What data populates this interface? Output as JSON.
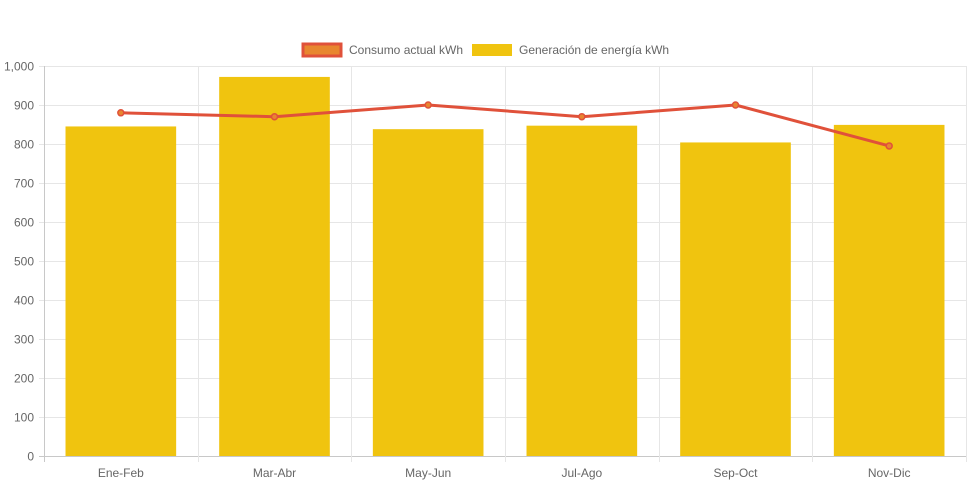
{
  "chart_data": {
    "type": "bar",
    "categories": [
      "Ene-Feb",
      "Mar-Abr",
      "May-Jun",
      "Jul-Ago",
      "Sep-Oct",
      "Nov-Dic"
    ],
    "series": [
      {
        "name": "Consumo actual kWh",
        "kind": "line",
        "values": [
          880,
          870,
          900,
          870,
          900,
          795
        ],
        "color": "#e0513a",
        "legend_fill": "#e8862f"
      },
      {
        "name": "Generación de energía kWh",
        "kind": "bar",
        "values": [
          845,
          972,
          838,
          847,
          804,
          849
        ],
        "color": "#f0c40f"
      }
    ],
    "yticks": [
      "0",
      "100",
      "200",
      "300",
      "400",
      "500",
      "600",
      "700",
      "800",
      "900",
      "1,000"
    ],
    "ylim": [
      0,
      1000
    ],
    "grid": true,
    "legend_position": "top-center"
  }
}
